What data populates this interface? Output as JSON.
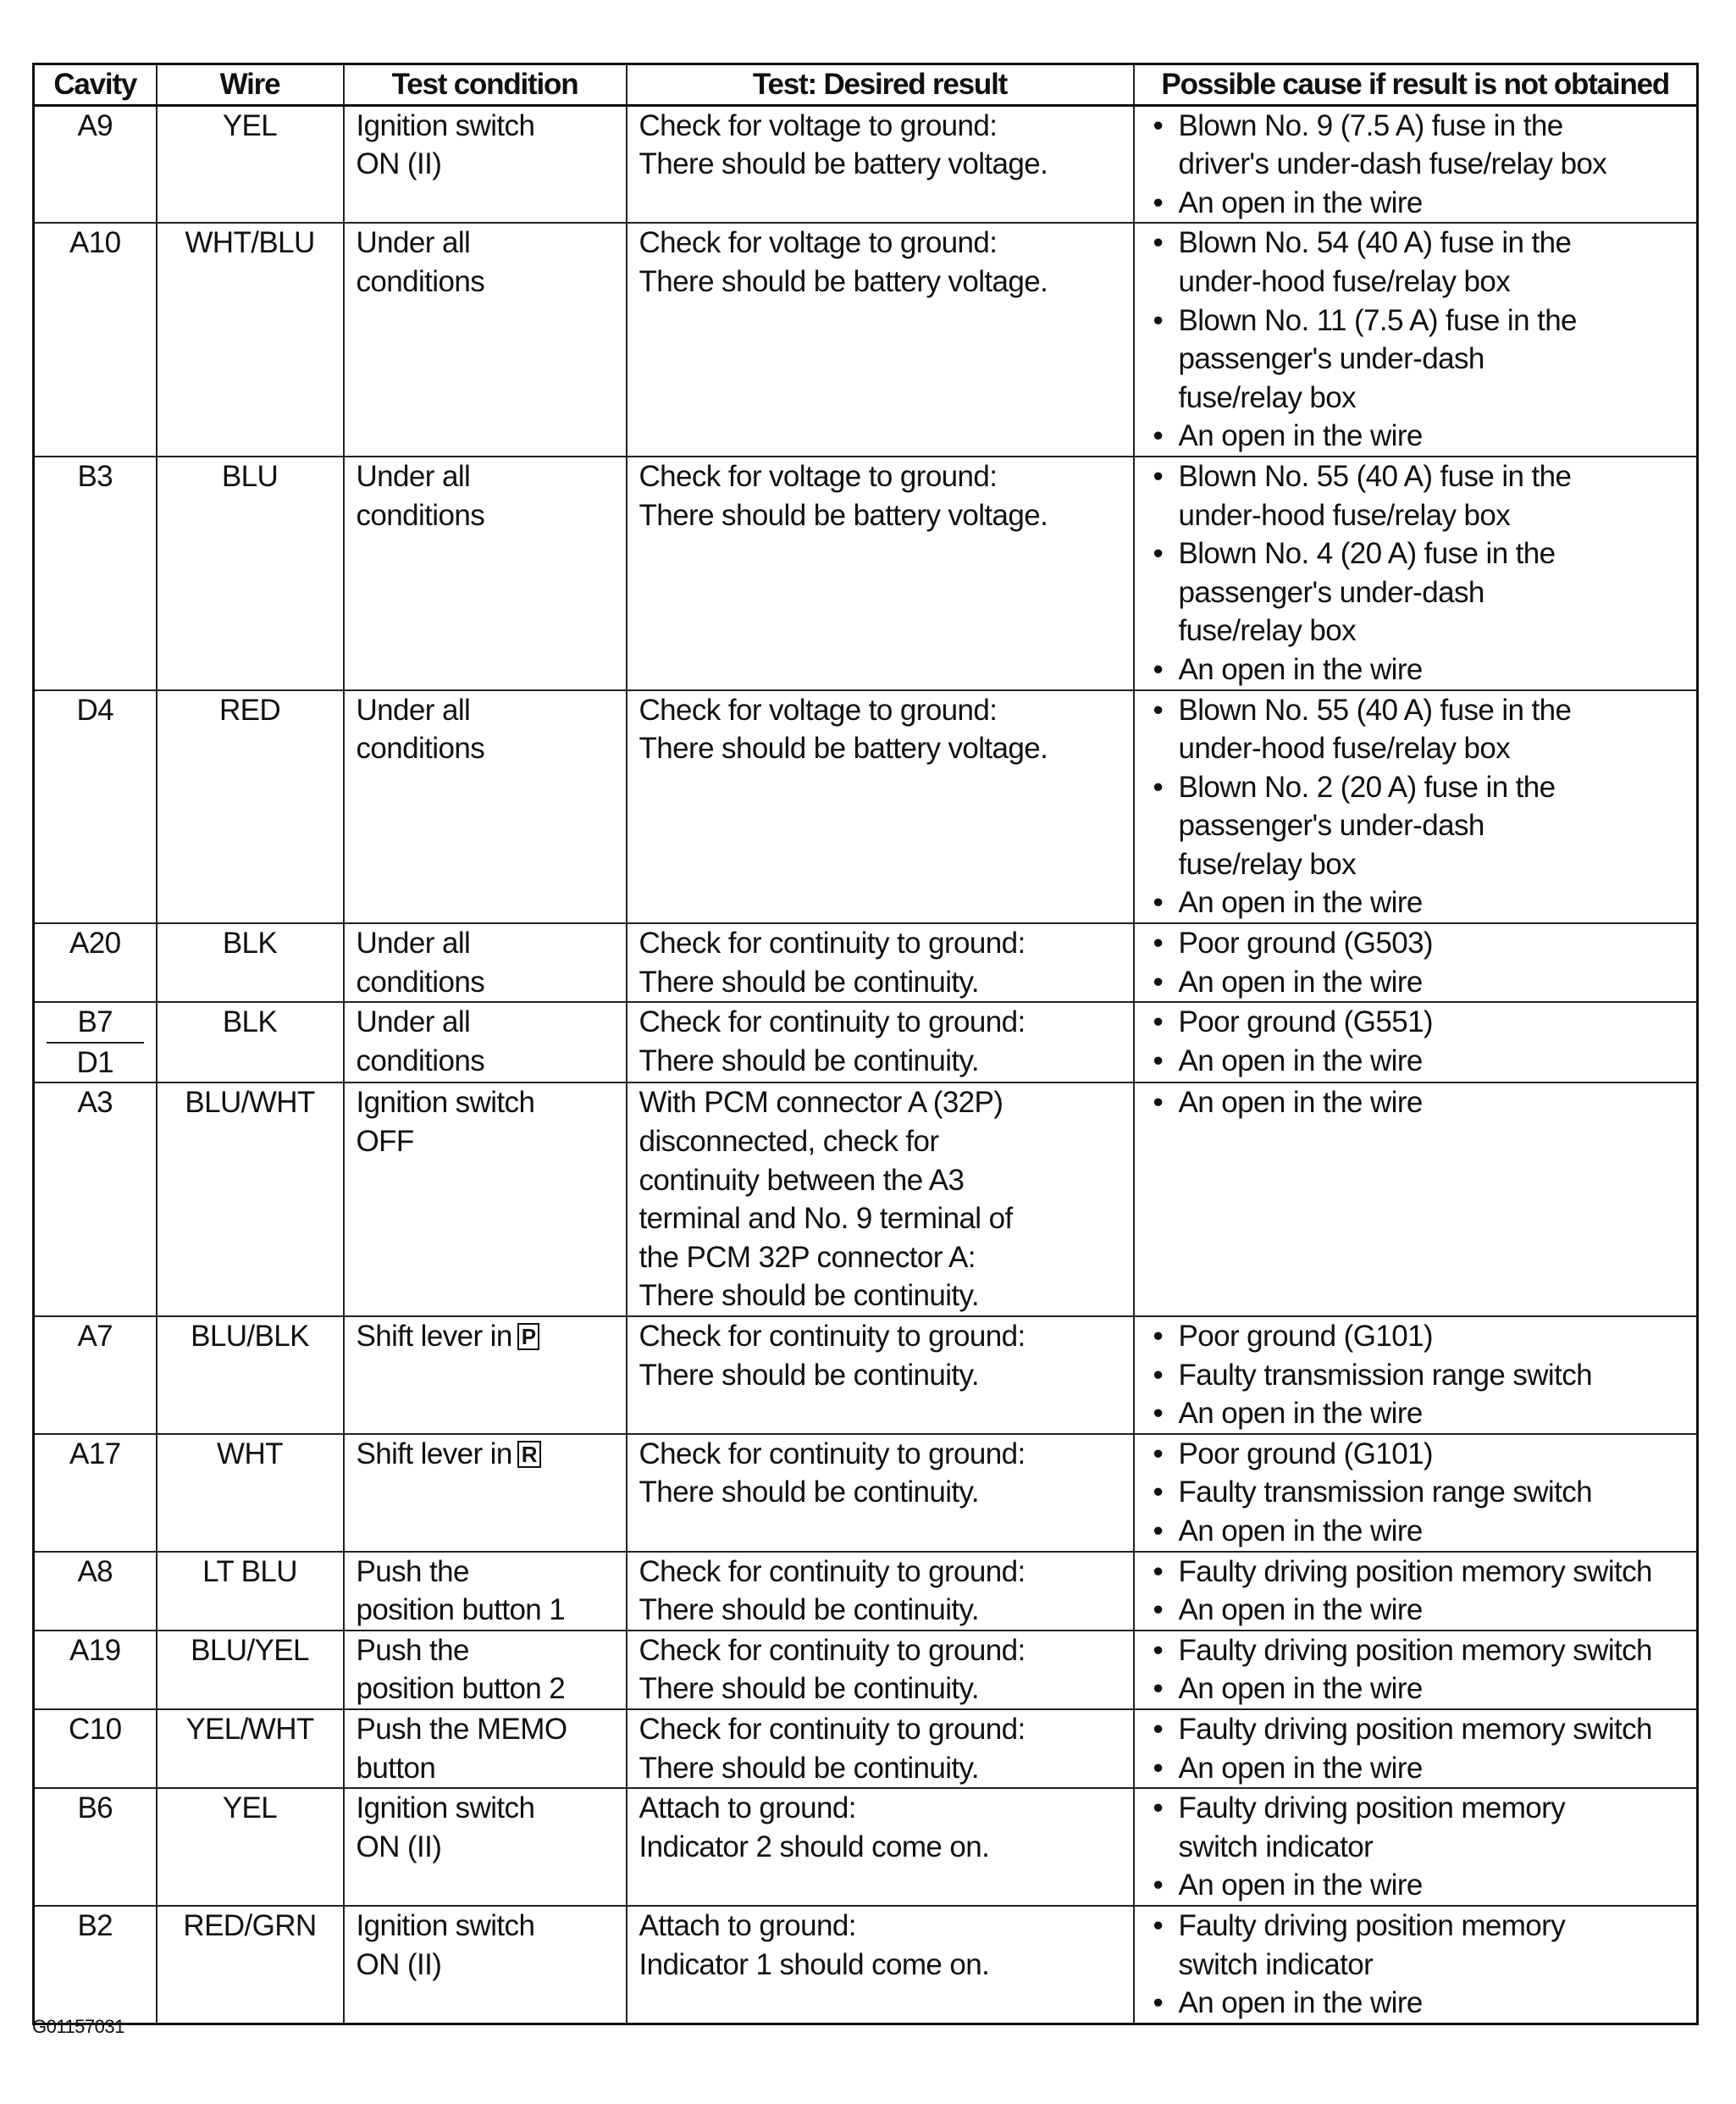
{
  "headers": [
    "Cavity",
    "Wire",
    "Test condition",
    "Test: Desired result",
    "Possible cause if result is not obtained"
  ],
  "rows": [
    {
      "cavity": [
        "A9"
      ],
      "wire": "YEL",
      "lines": 3,
      "condition": "Ignition switch\nON (II)",
      "result": "Check for voltage to ground:\nThere should be battery voltage.",
      "causes": [
        "Blown No. 9 (7.5 A) fuse in the\ndriver's under-dash fuse/relay box",
        "An open in the wire"
      ]
    },
    {
      "cavity": [
        "A10"
      ],
      "wire": "WHT/BLU",
      "lines": 6,
      "condition": "Under all\nconditions",
      "result": "Check for voltage to ground:\nThere should be battery voltage.",
      "causes": [
        "Blown No. 54 (40 A) fuse in the\nunder-hood fuse/relay box",
        "Blown No. 11 (7.5 A) fuse in the\npassenger's under-dash\nfuse/relay box",
        "An open in the wire"
      ]
    },
    {
      "cavity": [
        "B3"
      ],
      "wire": "BLU",
      "lines": 6,
      "condition": "Under all\nconditions",
      "result": "Check for voltage to ground:\nThere should be battery voltage.",
      "causes": [
        "Blown No. 55 (40 A) fuse in the\nunder-hood fuse/relay box",
        "Blown No. 4 (20 A) fuse in the\npassenger's under-dash\nfuse/relay box",
        "An open in the wire"
      ]
    },
    {
      "cavity": [
        "D4"
      ],
      "wire": "RED",
      "lines": 6,
      "condition": "Under all\nconditions",
      "result": "Check for voltage to ground:\nThere should be battery voltage.",
      "causes": [
        "Blown No. 55 (40 A) fuse in the\nunder-hood fuse/relay box",
        "Blown No. 2 (20 A) fuse in the\npassenger's under-dash\nfuse/relay box",
        "An open in the wire"
      ]
    },
    {
      "cavity": [
        "A20"
      ],
      "wire": "BLK",
      "lines": 2,
      "condition": "Under all\nconditions",
      "result": "Check for continuity to ground:\nThere should be continuity.",
      "causes": [
        "Poor ground (G503)",
        "An open in the wire"
      ]
    },
    {
      "cavity": [
        "B7",
        "D1"
      ],
      "wire": "BLK",
      "lines": 2,
      "condition": "Under all\nconditions",
      "result": "Check for continuity to ground:\nThere should be continuity.",
      "causes": [
        "Poor ground (G551)",
        "An open in the wire"
      ]
    },
    {
      "cavity": [
        "A3"
      ],
      "wire": "BLU/WHT",
      "lines": 6,
      "condition": "Ignition switch\nOFF",
      "result": "With PCM connector A (32P)\ndisconnected, check for\ncontinuity between the A3\nterminal and No. 9 terminal of\nthe PCM 32P connector A:\nThere should be continuity.",
      "causes": [
        "An open in the wire"
      ]
    },
    {
      "cavity": [
        "A7"
      ],
      "wire": "BLU/BLK",
      "lines": 3,
      "condition": "Shift lever in",
      "condition_box": "P",
      "result": "Check for continuity to ground:\nThere should be continuity.",
      "causes": [
        "Poor ground (G101)",
        "Faulty transmission range switch",
        "An open in the wire"
      ]
    },
    {
      "cavity": [
        "A17"
      ],
      "wire": "WHT",
      "lines": 3,
      "condition": "Shift lever in",
      "condition_box": "R",
      "result": "Check for continuity to ground:\nThere should be continuity.",
      "causes": [
        "Poor ground (G101)",
        "Faulty transmission range switch",
        "An open in the wire"
      ]
    },
    {
      "cavity": [
        "A8"
      ],
      "wire": "LT BLU",
      "lines": 2,
      "condition": "Push the\nposition button 1",
      "result": "Check for continuity to ground:\nThere should be continuity.",
      "causes": [
        "Faulty driving position memory switch",
        "An open in the wire"
      ]
    },
    {
      "cavity": [
        "A19"
      ],
      "wire": "BLU/YEL",
      "lines": 2,
      "condition": "Push the\nposition button 2",
      "result": "Check for continuity to ground:\nThere should be continuity.",
      "causes": [
        "Faulty driving position memory switch",
        "An open in the wire"
      ]
    },
    {
      "cavity": [
        "C10"
      ],
      "wire": "YEL/WHT",
      "lines": 2,
      "condition": "Push the MEMO\nbutton",
      "result": "Check for continuity to ground:\nThere should be continuity.",
      "causes": [
        "Faulty driving position memory switch",
        "An open in the wire"
      ]
    },
    {
      "cavity": [
        "B6"
      ],
      "wire": "YEL",
      "lines": 3,
      "condition": "Ignition switch\nON (II)",
      "result": "Attach to ground:\nIndicator 2 should come on.",
      "causes": [
        "Faulty driving position memory\nswitch indicator",
        "An open in the wire"
      ]
    },
    {
      "cavity": [
        "B2"
      ],
      "wire": "RED/GRN",
      "lines": 3,
      "condition": "Ignition switch\nON (II)",
      "result": "Attach to ground:\nIndicator 1 should come on.",
      "causes": [
        "Faulty driving position memory\nswitch indicator",
        "An open in the wire"
      ]
    }
  ],
  "figure_code": "G01157031"
}
